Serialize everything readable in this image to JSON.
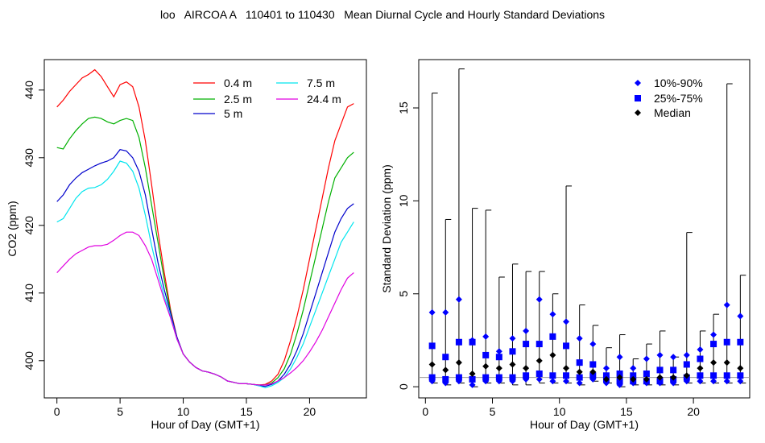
{
  "figure": {
    "title": "loo   AIRCOA A   110401 to 110430   Mean Diurnal Cycle and Hourly Standard Deviations"
  },
  "chart_data": [
    {
      "type": "line",
      "xlabel": "Hour of Day (GMT+1)",
      "ylabel": "CO2 (ppm)",
      "xlim": [
        -1,
        24.5
      ],
      "ylim": [
        394.5,
        444.5
      ],
      "xticks": [
        0,
        5,
        10,
        15,
        20
      ],
      "yticks": [
        400,
        410,
        420,
        430,
        440
      ],
      "legend_position": "top-right",
      "grid": false,
      "x": [
        0,
        0.5,
        1,
        1.5,
        2,
        2.5,
        3,
        3.5,
        4,
        4.5,
        5,
        5.5,
        6,
        6.5,
        7,
        7.5,
        8,
        8.5,
        9,
        9.5,
        10,
        10.5,
        11,
        11.5,
        12,
        12.5,
        13,
        13.5,
        14,
        14.5,
        15,
        15.5,
        16,
        16.5,
        17,
        17.5,
        18,
        18.5,
        19,
        19.5,
        20,
        20.5,
        21,
        21.5,
        22,
        22.5,
        23,
        23.5
      ],
      "series": [
        {
          "name": "0.4 m",
          "color": "#ff0000",
          "values": [
            437.5,
            438.5,
            439.8,
            440.8,
            441.8,
            442.3,
            443.0,
            442.0,
            440.5,
            439.0,
            440.8,
            441.2,
            440.5,
            437.5,
            432.5,
            426.0,
            419.0,
            413.0,
            407.5,
            403.5,
            401.0,
            399.8,
            399.0,
            398.5,
            398.3,
            398.0,
            397.6,
            397.0,
            396.8,
            396.6,
            396.6,
            396.5,
            396.4,
            396.5,
            397.0,
            398.0,
            400.0,
            403.0,
            406.5,
            410.5,
            415.0,
            419.5,
            424.0,
            428.5,
            432.5,
            435.0,
            437.5,
            438.0
          ]
        },
        {
          "name": "2.5 m",
          "color": "#00b000",
          "values": [
            431.5,
            431.3,
            432.8,
            434.0,
            435.0,
            435.8,
            436.0,
            435.8,
            435.3,
            435.0,
            435.5,
            435.8,
            435.5,
            433.0,
            428.5,
            423.0,
            417.5,
            412.0,
            407.2,
            403.3,
            401.0,
            399.8,
            399.0,
            398.5,
            398.3,
            398.0,
            397.6,
            397.0,
            396.8,
            396.6,
            396.6,
            396.5,
            396.4,
            396.4,
            396.7,
            397.5,
            398.8,
            401.0,
            404.0,
            407.5,
            411.5,
            415.5,
            419.5,
            423.5,
            427.0,
            428.5,
            430.0,
            430.8
          ]
        },
        {
          "name": "5 m",
          "color": "#0000cc",
          "values": [
            423.5,
            424.5,
            426.0,
            427.0,
            427.8,
            428.3,
            428.8,
            429.2,
            429.5,
            430.0,
            431.2,
            431.0,
            430.0,
            428.0,
            424.5,
            419.5,
            414.5,
            410.5,
            407.0,
            403.5,
            401.0,
            399.8,
            399.0,
            398.5,
            398.3,
            398.0,
            397.6,
            397.0,
            396.8,
            396.6,
            396.6,
            396.5,
            396.3,
            396.2,
            396.5,
            397.0,
            398.0,
            399.5,
            401.5,
            404.0,
            407.0,
            410.0,
            413.0,
            416.0,
            419.0,
            421.0,
            422.5,
            423.2
          ]
        },
        {
          "name": "7.5 m",
          "color": "#00e5ee",
          "values": [
            420.5,
            421.0,
            422.5,
            424.0,
            425.0,
            425.5,
            425.6,
            426.0,
            426.8,
            428.0,
            429.5,
            429.2,
            428.0,
            425.5,
            421.5,
            417.0,
            413.0,
            409.5,
            406.5,
            403.2,
            401.0,
            399.8,
            399.0,
            398.5,
            398.3,
            398.0,
            397.6,
            397.0,
            396.8,
            396.6,
            396.6,
            396.5,
            396.3,
            396.0,
            396.3,
            396.8,
            397.5,
            398.8,
            400.5,
            402.5,
            405.0,
            407.5,
            410.0,
            412.5,
            415.0,
            417.5,
            419.0,
            420.5
          ]
        },
        {
          "name": "24.4 m",
          "color": "#e000e0",
          "values": [
            413.0,
            414.0,
            415.0,
            415.8,
            416.3,
            416.8,
            417.0,
            417.0,
            417.2,
            417.8,
            418.5,
            419.0,
            419.0,
            418.5,
            417.0,
            415.0,
            412.0,
            409.0,
            406.3,
            403.2,
            401.0,
            399.8,
            399.0,
            398.5,
            398.3,
            398.0,
            397.6,
            397.0,
            396.8,
            396.6,
            396.6,
            396.5,
            396.4,
            396.4,
            396.6,
            397.0,
            397.5,
            398.2,
            399.0,
            400.0,
            401.3,
            402.8,
            404.5,
            406.5,
            408.5,
            410.5,
            412.2,
            413.0
          ]
        }
      ]
    },
    {
      "type": "scatter",
      "xlabel": "Hour of Day (GMT+1)",
      "ylabel": "Standard Deviation (ppm)",
      "xlim": [
        -0.5,
        24.2
      ],
      "ylim": [
        -0.6,
        17.6
      ],
      "xticks": [
        0,
        5,
        10,
        15,
        20
      ],
      "yticks": [
        0,
        5,
        10,
        15
      ],
      "legend_position": "top-right",
      "grid": false,
      "reference_line": 0.5,
      "x": [
        0.5,
        1.5,
        2.5,
        3.5,
        4.5,
        5.5,
        6.5,
        7.5,
        8.5,
        9.5,
        10.5,
        11.5,
        12.5,
        13.5,
        14.5,
        15.5,
        16.5,
        17.5,
        18.5,
        19.5,
        20.5,
        21.5,
        22.5,
        23.5
      ],
      "whisker_max": [
        15.8,
        9.0,
        17.1,
        9.6,
        9.5,
        5.9,
        6.6,
        6.2,
        6.2,
        5.0,
        10.8,
        4.4,
        3.3,
        2.1,
        2.8,
        1.5,
        2.3,
        3.0,
        1.6,
        8.3,
        3.0,
        3.9,
        16.3,
        6.0
      ],
      "whisker_min": [
        0.2,
        0.1,
        0.2,
        0.0,
        0.2,
        0.2,
        0.1,
        0.1,
        0.2,
        0.2,
        0.2,
        0.1,
        0.3,
        0.2,
        0.0,
        0.1,
        0.1,
        0.1,
        0.1,
        0.2,
        0.2,
        0.2,
        0.2,
        0.2
      ],
      "series": [
        {
          "name": "10%-90%",
          "marker": "diamond",
          "color": "#0000ff",
          "values_high": [
            4.0,
            4.0,
            4.7,
            2.5,
            2.7,
            1.9,
            2.6,
            3.0,
            4.7,
            3.9,
            3.5,
            2.6,
            2.3,
            1.0,
            1.6,
            1.0,
            1.5,
            1.7,
            1.6,
            1.7,
            2.0,
            2.8,
            4.4,
            3.8
          ],
          "values_low": [
            0.3,
            0.2,
            0.3,
            0.1,
            0.3,
            0.3,
            0.3,
            0.4,
            0.4,
            0.3,
            0.3,
            0.2,
            0.4,
            0.2,
            0.1,
            0.2,
            0.2,
            0.2,
            0.2,
            0.3,
            0.3,
            0.3,
            0.3,
            0.3
          ]
        },
        {
          "name": "25%-75%",
          "marker": "square",
          "color": "#0000ff",
          "values_high": [
            2.2,
            1.6,
            2.4,
            2.4,
            1.7,
            1.6,
            1.9,
            2.3,
            2.3,
            2.7,
            2.2,
            1.3,
            1.2,
            0.6,
            0.7,
            0.6,
            0.7,
            0.9,
            0.9,
            1.2,
            1.5,
            2.3,
            2.4,
            2.4
          ],
          "values_low": [
            0.5,
            0.4,
            0.5,
            0.4,
            0.5,
            0.5,
            0.5,
            0.6,
            0.7,
            0.6,
            0.6,
            0.5,
            0.6,
            0.4,
            0.3,
            0.3,
            0.3,
            0.3,
            0.4,
            0.5,
            0.6,
            0.6,
            0.6,
            0.6
          ]
        },
        {
          "name": "Median",
          "marker": "diamond",
          "color": "#000000",
          "values": [
            1.2,
            0.9,
            1.3,
            0.7,
            1.1,
            1.0,
            1.2,
            1.0,
            1.4,
            1.7,
            1.0,
            0.8,
            0.8,
            0.4,
            0.5,
            0.4,
            0.4,
            0.5,
            0.5,
            0.6,
            1.0,
            1.3,
            1.3,
            1.0
          ]
        }
      ]
    }
  ]
}
